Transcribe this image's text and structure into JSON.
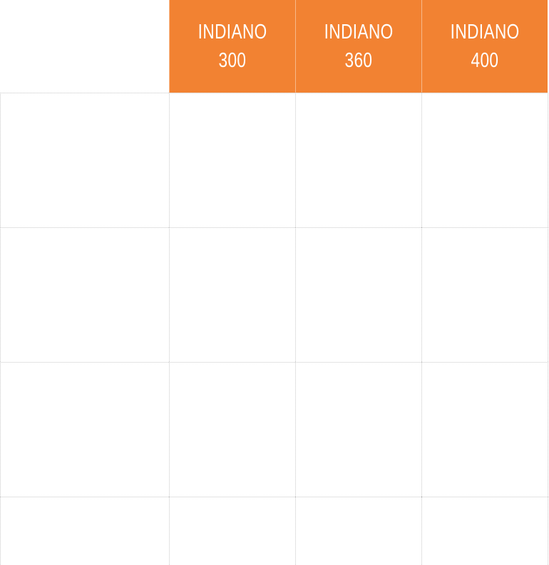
{
  "table": {
    "header": [
      [
        "INDIANO",
        "300"
      ],
      [
        "INDIANO",
        "360"
      ],
      [
        "INDIANO",
        "400"
      ]
    ]
  }
}
